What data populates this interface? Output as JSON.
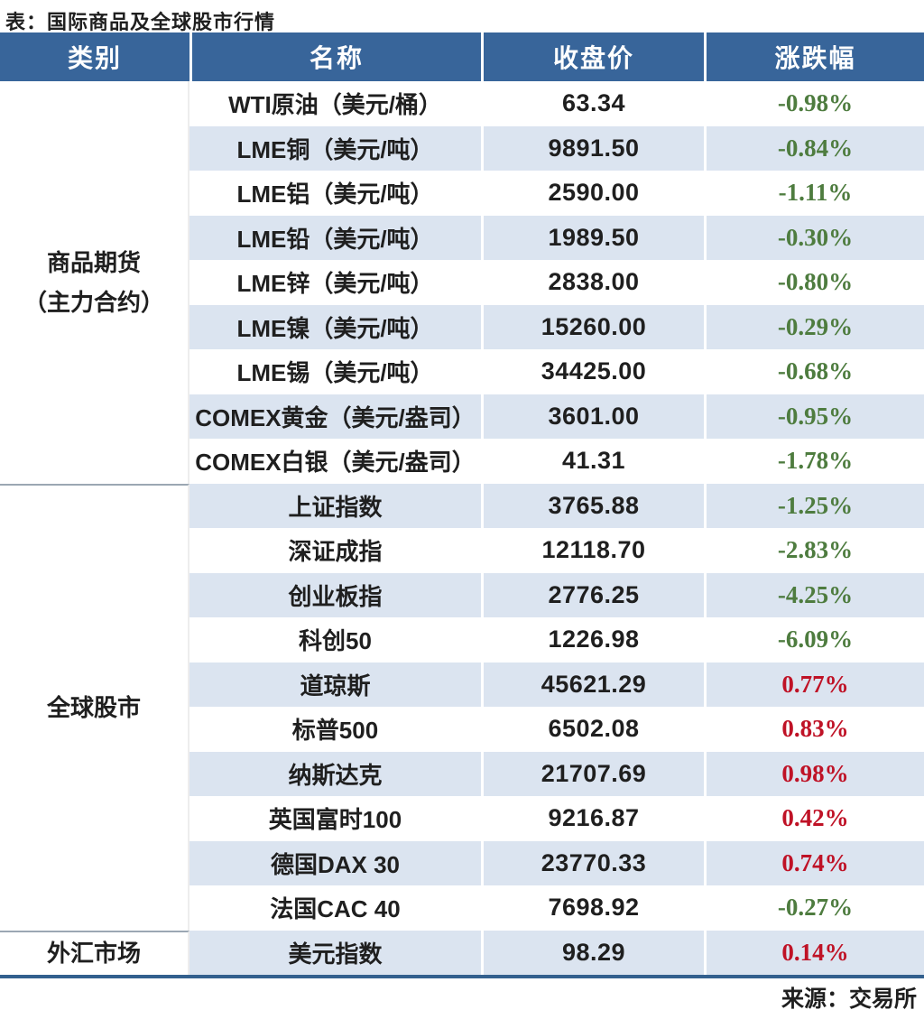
{
  "title": "表：国际商品及全球股市行情",
  "source": "来源：交易所",
  "colors": {
    "header_bg": "#38659a",
    "stripe_bg": "#dbe4f0",
    "up_red": "#bf1226",
    "down_green": "#4e7c3f",
    "rule_blue": "#33608e",
    "divider_gray": "#9ba7b3",
    "text_black": "#1f1f1f"
  },
  "table": {
    "headers": [
      "类别",
      "名称",
      "收盘价",
      "涨跌幅"
    ],
    "sections": [
      {
        "category_lines": [
          "商品期货",
          "（主力合约）"
        ],
        "rows": [
          {
            "name": "WTI原油（美元/桶）",
            "close": "63.34",
            "change": "-0.98%"
          },
          {
            "name": "LME铜（美元/吨）",
            "close": "9891.50",
            "change": "-0.84%"
          },
          {
            "name": "LME铝（美元/吨）",
            "close": "2590.00",
            "change": "-1.11%"
          },
          {
            "name": "LME铅（美元/吨）",
            "close": "1989.50",
            "change": "-0.30%"
          },
          {
            "name": "LME锌（美元/吨）",
            "close": "2838.00",
            "change": "-0.80%"
          },
          {
            "name": "LME镍（美元/吨）",
            "close": "15260.00",
            "change": "-0.29%"
          },
          {
            "name": "LME锡（美元/吨）",
            "close": "34425.00",
            "change": "-0.68%"
          },
          {
            "name": "COMEX黄金（美元/盎司）",
            "close": "3601.00",
            "change": "-0.95%"
          },
          {
            "name": "COMEX白银（美元/盎司）",
            "close": "41.31",
            "change": "-1.78%"
          }
        ]
      },
      {
        "category_lines": [
          "全球股市"
        ],
        "rows": [
          {
            "name": "上证指数",
            "close": "3765.88",
            "change": "-1.25%"
          },
          {
            "name": "深证成指",
            "close": "12118.70",
            "change": "-2.83%"
          },
          {
            "name": "创业板指",
            "close": "2776.25",
            "change": "-4.25%"
          },
          {
            "name": "科创50",
            "close": "1226.98",
            "change": "-6.09%"
          },
          {
            "name": "道琼斯",
            "close": "45621.29",
            "change": "0.77%"
          },
          {
            "name": "标普500",
            "close": "6502.08",
            "change": "0.83%"
          },
          {
            "name": "纳斯达克",
            "close": "21707.69",
            "change": "0.98%"
          },
          {
            "name": "英国富时100",
            "close": "9216.87",
            "change": "0.42%"
          },
          {
            "name": "德国DAX 30",
            "close": "23770.33",
            "change": "0.74%"
          },
          {
            "name": "法国CAC 40",
            "close": "7698.92",
            "change": "-0.27%"
          }
        ]
      },
      {
        "category_lines": [
          "外汇市场"
        ],
        "rows": [
          {
            "name": "美元指数",
            "close": "98.29",
            "change": "0.14%"
          }
        ]
      }
    ]
  },
  "chart_data": {
    "type": "table",
    "title": "表：国际商品及全球股市行情",
    "source": "来源：交易所",
    "columns": [
      "类别",
      "名称",
      "收盘价",
      "涨跌幅"
    ],
    "rows": [
      [
        "商品期货（主力合约）",
        "WTI原油（美元/桶）",
        63.34,
        "-0.98%"
      ],
      [
        "商品期货（主力合约）",
        "LME铜（美元/吨）",
        9891.5,
        "-0.84%"
      ],
      [
        "商品期货（主力合约）",
        "LME铝（美元/吨）",
        2590.0,
        "-1.11%"
      ],
      [
        "商品期货（主力合约）",
        "LME铅（美元/吨）",
        1989.5,
        "-0.30%"
      ],
      [
        "商品期货（主力合约）",
        "LME锌（美元/吨）",
        2838.0,
        "-0.80%"
      ],
      [
        "商品期货（主力合约）",
        "LME镍（美元/吨）",
        15260.0,
        "-0.29%"
      ],
      [
        "商品期货（主力合约）",
        "LME锡（美元/吨）",
        34425.0,
        "-0.68%"
      ],
      [
        "商品期货（主力合约）",
        "COMEX黄金（美元/盎司）",
        3601.0,
        "-0.95%"
      ],
      [
        "商品期货（主力合约）",
        "COMEX白银（美元/盎司）",
        41.31,
        "-1.78%"
      ],
      [
        "全球股市",
        "上证指数",
        3765.88,
        "-1.25%"
      ],
      [
        "全球股市",
        "深证成指",
        12118.7,
        "-2.83%"
      ],
      [
        "全球股市",
        "创业板指",
        2776.25,
        "-4.25%"
      ],
      [
        "全球股市",
        "科创50",
        1226.98,
        "-6.09%"
      ],
      [
        "全球股市",
        "道琼斯",
        45621.29,
        "0.77%"
      ],
      [
        "全球股市",
        "标普500",
        6502.08,
        "0.83%"
      ],
      [
        "全球股市",
        "纳斯达克",
        21707.69,
        "0.98%"
      ],
      [
        "全球股市",
        "英国富时100",
        9216.87,
        "0.42%"
      ],
      [
        "全球股市",
        "德国DAX 30",
        23770.33,
        "0.74%"
      ],
      [
        "全球股市",
        "法国CAC 40",
        7698.92,
        "-0.27%"
      ],
      [
        "外汇市场",
        "美元指数",
        98.29,
        "0.14%"
      ]
    ],
    "style_notes": {
      "negative_change_color": "green",
      "positive_change_color": "red",
      "row_striping": "alternating white / light blue"
    }
  }
}
